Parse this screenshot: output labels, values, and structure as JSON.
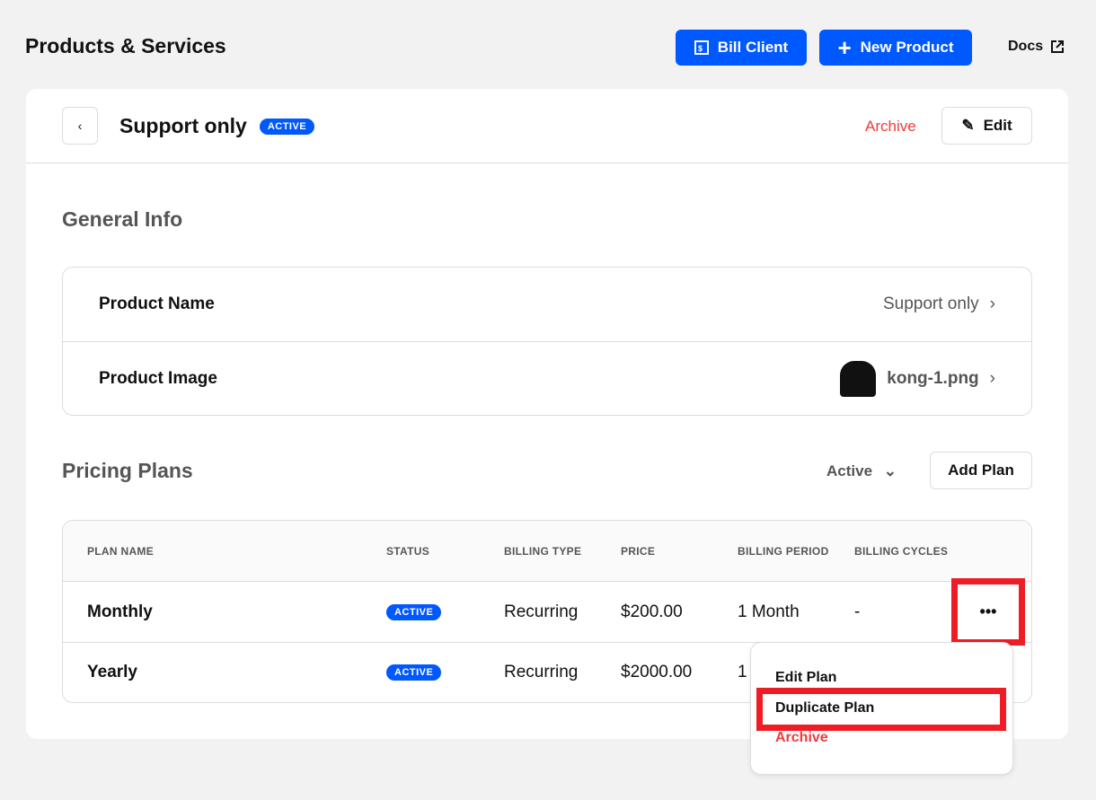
{
  "page": {
    "title": "Products & Services",
    "bill_client": "Bill Client",
    "new_product": "New Product",
    "docs": "Docs"
  },
  "product": {
    "name": "Support only",
    "status": "ACTIVE",
    "archive": "Archive",
    "edit": "Edit"
  },
  "general": {
    "title": "General Info",
    "rows": [
      {
        "label": "Product Name",
        "value": "Support only"
      },
      {
        "label": "Product Image",
        "value": "kong-1.png"
      }
    ]
  },
  "plans": {
    "title": "Pricing Plans",
    "filter": "Active",
    "add": "Add Plan",
    "columns": [
      "PLAN NAME",
      "STATUS",
      "BILLING TYPE",
      "PRICE",
      "BILLING PERIOD",
      "BILLING CYCLES"
    ],
    "rows": [
      {
        "name": "Monthly",
        "status": "ACTIVE",
        "type": "Recurring",
        "price": "$200.00",
        "period": "1 Month",
        "cycles": "-"
      },
      {
        "name": "Yearly",
        "status": "ACTIVE",
        "type": "Recurring",
        "price": "$2000.00",
        "period": "1",
        "cycles": ""
      }
    ]
  },
  "menu": {
    "items": [
      "Edit Plan",
      "Duplicate Plan",
      "Archive"
    ]
  },
  "colors": {
    "accent": "#0058ff",
    "danger": "#ef3b3b",
    "highlight": "#ee1c25"
  }
}
